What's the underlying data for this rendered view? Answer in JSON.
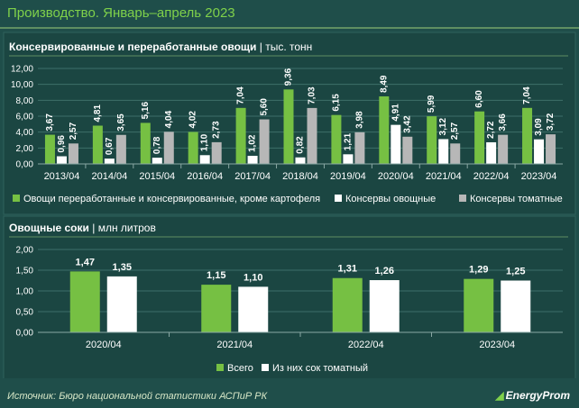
{
  "header": {
    "title": "Производство. Январь–апрель 2023"
  },
  "footer": {
    "source": "Источник: Бюро национальной статистики АСПиР РК",
    "logo": "EnergyProm"
  },
  "colors": {
    "green": "#76c043",
    "white": "#ffffff",
    "gray": "#b7b7b7",
    "text": "#ffffff",
    "grid": "#3e6f69"
  },
  "chart_data": [
    {
      "type": "bar",
      "title": "Консервированные и переработанные овощи",
      "unit": "тыс. тонн",
      "categories": [
        "2013/04",
        "2014/04",
        "2015/04",
        "2016/04",
        "2017/04",
        "2018/04",
        "2019/04",
        "2020/04",
        "2021/04",
        "2022/04",
        "2023/04"
      ],
      "series": [
        {
          "name": "Овощи переработанные и консервированные, кроме картофеля",
          "color": "#76c043",
          "values": [
            3.67,
            4.81,
            5.16,
            4.02,
            7.04,
            9.36,
            6.15,
            8.49,
            5.99,
            6.6,
            7.04
          ],
          "labels": [
            "3,67",
            "4,81",
            "5,16",
            "4,02",
            "7,04",
            "9,36",
            "6,15",
            "8,49",
            "5,99",
            "6,60",
            "7,04"
          ]
        },
        {
          "name": "Консервы овощные",
          "color": "#ffffff",
          "values": [
            0.96,
            0.67,
            0.78,
            1.1,
            1.02,
            0.82,
            1.21,
            4.91,
            3.12,
            2.72,
            3.09
          ],
          "labels": [
            "0,96",
            "0,67",
            "0,78",
            "1,10",
            "1,02",
            "0,82",
            "1,21",
            "4,91",
            "3,12",
            "2,72",
            "3,09"
          ]
        },
        {
          "name": "Консервы томатные",
          "color": "#b7b7b7",
          "values": [
            2.57,
            3.65,
            4.04,
            2.73,
            5.6,
            7.03,
            3.98,
            3.42,
            2.57,
            3.66,
            3.72
          ],
          "labels": [
            "2,57",
            "3,65",
            "4,04",
            "2,73",
            "5,60",
            "7,03",
            "3,98",
            "3,42",
            "2,57",
            "3,66",
            "3,72"
          ]
        }
      ],
      "ylim": [
        0,
        12
      ],
      "yticks": [
        "0,00",
        "2,00",
        "4,00",
        "6,00",
        "8,00",
        "10,00",
        "12,00"
      ],
      "grid": true,
      "legend": "bottom"
    },
    {
      "type": "bar",
      "title": "Овощные соки",
      "unit": "млн литров",
      "categories": [
        "2020/04",
        "2021/04",
        "2022/04",
        "2023/04"
      ],
      "series": [
        {
          "name": "Всего",
          "color": "#76c043",
          "values": [
            1.47,
            1.15,
            1.31,
            1.29
          ],
          "labels": [
            "1,47",
            "1,15",
            "1,31",
            "1,29"
          ]
        },
        {
          "name": "Из них сок томатный",
          "color": "#ffffff",
          "values": [
            1.35,
            1.1,
            1.26,
            1.25
          ],
          "labels": [
            "1,35",
            "1,10",
            "1,26",
            "1,25"
          ]
        }
      ],
      "ylim": [
        0,
        2
      ],
      "yticks": [
        "0,00",
        "0,50",
        "1,00",
        "1,50",
        "2,00"
      ],
      "grid": true,
      "legend": "bottom"
    }
  ]
}
